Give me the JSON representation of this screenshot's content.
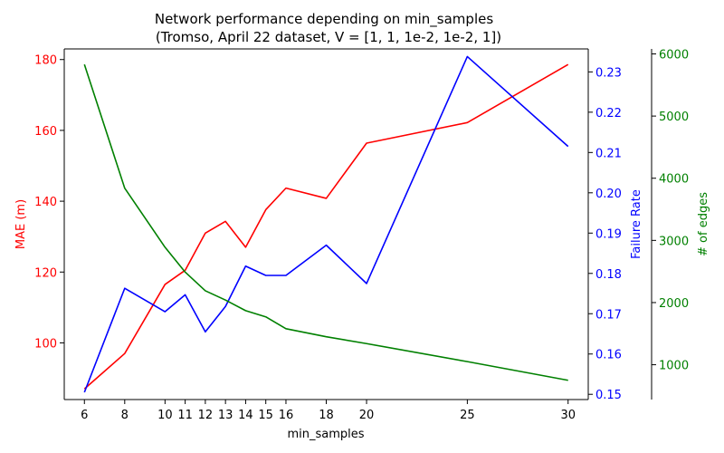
{
  "chart_data": {
    "type": "line",
    "title": "Network performance depending on min_samples",
    "subtitle": "(Tromso, April 22 dataset, V = [1, 1, 1e-2, 1e-2, 1])",
    "xlabel": "min_samples",
    "x": [
      6,
      8,
      10,
      11,
      12,
      13,
      14,
      15,
      16,
      18,
      20,
      25,
      30
    ],
    "xlim": [
      5.0,
      31.0
    ],
    "axes": [
      {
        "id": "left",
        "ylabel": "MAE (m)",
        "color": "#ff0000",
        "ylim": [
          84,
          183
        ],
        "ticks": [
          100,
          120,
          140,
          160,
          180
        ]
      },
      {
        "id": "right1",
        "ylabel": "Failure Rate",
        "color": "#0000ff",
        "ylim": [
          0.1487,
          0.2357
        ],
        "ticks": [
          0.15,
          0.16,
          0.17,
          0.18,
          0.19,
          0.2,
          0.21,
          0.22,
          0.23
        ]
      },
      {
        "id": "right2",
        "ylabel": "# of edges",
        "color": "#008000",
        "ylim": [
          440,
          6080
        ],
        "ticks": [
          1000,
          2000,
          3000,
          4000,
          5000,
          6000
        ]
      }
    ],
    "series": [
      {
        "axis": "left",
        "color": "#ff0000",
        "values": [
          87,
          97,
          116.5,
          120.5,
          131,
          134.3,
          127,
          137.6,
          143.7,
          140.8,
          156.4,
          162.2,
          178.6
        ]
      },
      {
        "axis": "right1",
        "color": "#0000ff",
        "values": [
          0.1505,
          0.1763,
          0.1705,
          0.1747,
          0.1655,
          0.1718,
          0.1818,
          0.1795,
          0.1795,
          0.187,
          0.1775,
          0.2338,
          0.2115
        ]
      },
      {
        "axis": "right2",
        "color": "#008000",
        "values": [
          5830,
          3840,
          2890,
          2490,
          2190,
          2040,
          1870,
          1770,
          1580,
          1450,
          1340,
          1050,
          750
        ]
      }
    ],
    "grid": false,
    "legend": false
  }
}
